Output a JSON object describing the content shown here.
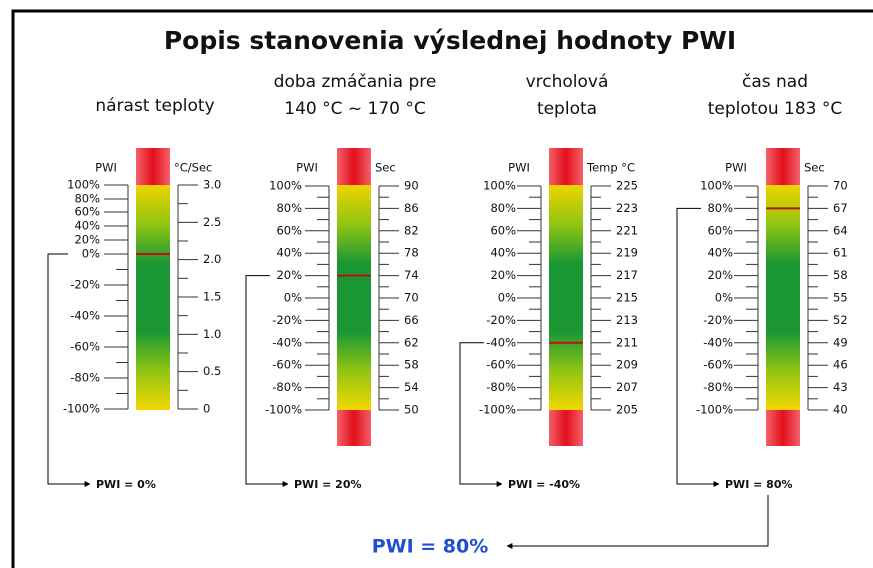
{
  "title": "Popis stanovenia výslednej hodnoty PWI",
  "gauges": [
    {
      "heading": [
        "nárast teploty"
      ],
      "left_label": "PWI",
      "right_label": "°C/Sec",
      "left_ticks": [
        "100%",
        "80%",
        "60%",
        "40%",
        "20%",
        "0%",
        "-20%",
        "-40%",
        "-60%",
        "-80%",
        "-100%"
      ],
      "right_ticks": [
        "3.0",
        "2.5",
        "2.0",
        "1.5",
        "1.0",
        "0.5",
        "0"
      ],
      "result": "PWI = 0%"
    },
    {
      "heading": [
        "doba zmáčania pre",
        "140 °C ~ 170 °C"
      ],
      "left_label": "PWI",
      "right_label": "Sec",
      "left_ticks": [
        "100%",
        "80%",
        "60%",
        "40%",
        "20%",
        "0%",
        "-20%",
        "-40%",
        "-60%",
        "-80%",
        "-100%"
      ],
      "right_ticks": [
        "90",
        "86",
        "82",
        "78",
        "74",
        "70",
        "66",
        "62",
        "58",
        "54",
        "50"
      ],
      "result": "PWI = 20%"
    },
    {
      "heading": [
        "vrcholová",
        "teplota"
      ],
      "left_label": "PWI",
      "right_label": "Temp °C",
      "left_ticks": [
        "100%",
        "80%",
        "60%",
        "40%",
        "20%",
        "0%",
        "-20%",
        "-40%",
        "-60%",
        "-80%",
        "-100%"
      ],
      "right_ticks": [
        "225",
        "223",
        "221",
        "219",
        "217",
        "215",
        "213",
        "211",
        "209",
        "207",
        "205"
      ],
      "result": "PWI = -40%"
    },
    {
      "heading": [
        "čas nad",
        "teplotou 183 °C"
      ],
      "left_label": "PWI",
      "right_label": "Sec",
      "left_ticks": [
        "100%",
        "80%",
        "60%",
        "40%",
        "20%",
        "0%",
        "-20%",
        "-40%",
        "-60%",
        "-80%",
        "-100%"
      ],
      "right_ticks": [
        "70",
        "67",
        "64",
        "61",
        "58",
        "55",
        "52",
        "49",
        "46",
        "43",
        "40"
      ],
      "result": "PWI = 80%"
    }
  ],
  "final_result": "PWI = 80%"
}
